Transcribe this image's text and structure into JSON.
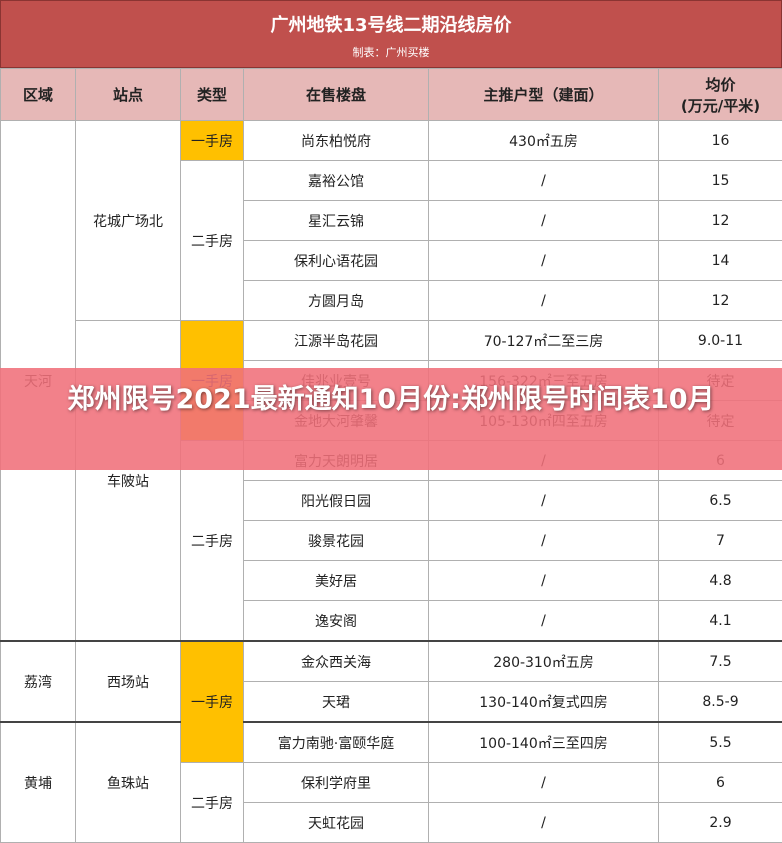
{
  "header": {
    "title": "广州地铁13号线二期沿线房价",
    "subtitle": "制表：广州买楼"
  },
  "table": {
    "columns": [
      "区域",
      "站点",
      "类型",
      "在售楼盘",
      "主推户型（建面）",
      "均价",
      "(万元/平米)"
    ],
    "rows": [
      {
        "district": "天河",
        "station": "花城广场北",
        "type": "一手房",
        "estate": "尚东柏悦府",
        "layout": "430㎡五房",
        "price": "16"
      },
      {
        "type": "二手房",
        "estate": "嘉裕公馆",
        "layout": "/",
        "price": "15"
      },
      {
        "estate": "星汇云锦",
        "layout": "/",
        "price": "12"
      },
      {
        "estate": "保利心语花园",
        "layout": "/",
        "price": "14"
      },
      {
        "estate": "方圆月岛",
        "layout": "/",
        "price": "12"
      },
      {
        "station": "车陂站",
        "type": "一手房",
        "estate": "江源半岛花园",
        "layout": "70-127㎡二至三房",
        "price": "9.0-11"
      },
      {
        "estate": "佳兆业壹号",
        "layout": "156-322㎡三至五房",
        "price": "待定"
      },
      {
        "estate": "金地大河肇馨",
        "layout": "105-130㎡四至五房",
        "price": "待定"
      },
      {
        "type": "二手房",
        "estate": "富力天朗明居",
        "layout": "/",
        "price": "6"
      },
      {
        "estate": "阳光假日园",
        "layout": "/",
        "price": "6.5"
      },
      {
        "estate": "骏景花园",
        "layout": "/",
        "price": "7"
      },
      {
        "estate": "美好居",
        "layout": "/",
        "price": "4.8"
      },
      {
        "estate": "逸安阁",
        "layout": "/",
        "price": "4.1"
      },
      {
        "district": "荔湾",
        "station": "西场站",
        "type": "一手房",
        "estate": "金众西关海",
        "layout": "280-310㎡五房",
        "price": "7.5"
      },
      {
        "estate": "天珺",
        "layout": "130-140㎡复式四房",
        "price": "8.5-9"
      },
      {
        "district": "黄埔",
        "station": "鱼珠站",
        "estate": "富力南驰·富颐华庭",
        "layout": "100-140㎡三至四房",
        "price": "5.5"
      },
      {
        "type": "二手房",
        "estate": "保利学府里",
        "layout": "/",
        "price": "6"
      },
      {
        "estate": "天虹花园",
        "layout": "/",
        "price": "2.9"
      }
    ]
  },
  "banner": "郑州限号2021最新通知10月份:郑州限号时间表10月"
}
